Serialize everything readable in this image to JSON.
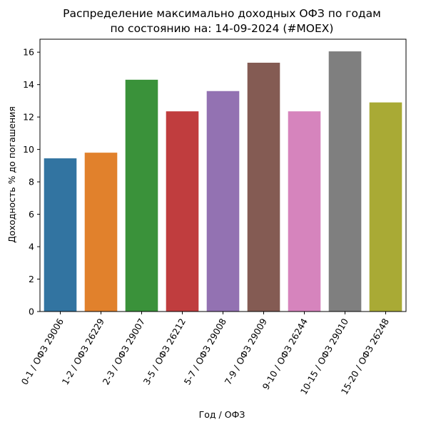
{
  "chart_data": {
    "type": "bar",
    "title": [
      "Распределение максимально доходных ОФЗ по годам",
      "по состоянию на: 14-09-2024 (#MOEX)"
    ],
    "xlabel": "Год / ОФЗ",
    "ylabel": "Доходность % до погашения",
    "ylim": [
      0,
      16.8
    ],
    "yticks": [
      0,
      2,
      4,
      6,
      8,
      10,
      12,
      14,
      16
    ],
    "grid": false,
    "categories": [
      "0-1 / ОФЗ 29006",
      "1-2 / ОФЗ 26229",
      "2-3 / ОФЗ 29007",
      "3-5 / ОФЗ 26212",
      "5-7 / ОФЗ 29008",
      "7-9 / ОФЗ 29009",
      "9-10 / ОФЗ 26244",
      "10-15 / ОФЗ 29010",
      "15-20 / ОФЗ 26248"
    ],
    "values": [
      9.45,
      9.8,
      14.3,
      12.35,
      13.6,
      15.35,
      12.35,
      16.05,
      12.9
    ],
    "colors": [
      "#3274a1",
      "#e1812c",
      "#3a923a",
      "#c03d3e",
      "#9372b2",
      "#845b53",
      "#d684bd",
      "#7f7f7f",
      "#a9aa35"
    ]
  }
}
